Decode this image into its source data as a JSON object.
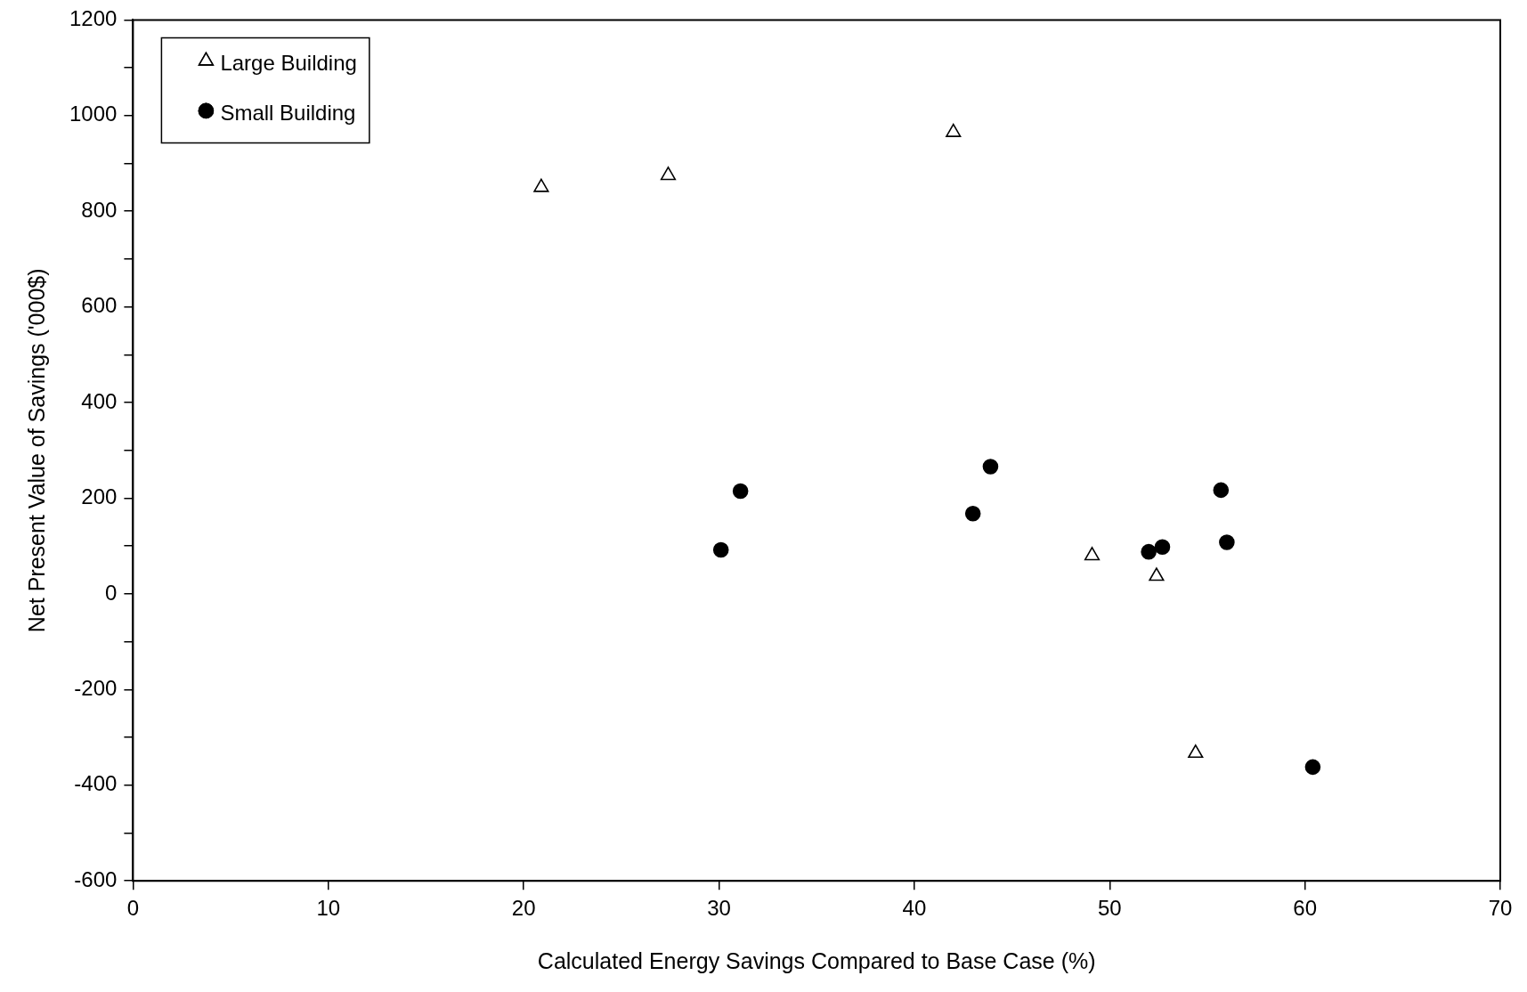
{
  "chart_data": {
    "type": "scatter",
    "xlabel": "Calculated Energy Savings Compared to Base Case (%)",
    "ylabel": "Net Present Value of Savings ('000$)",
    "xlim": [
      0,
      70
    ],
    "xticks": [
      0,
      10,
      20,
      30,
      40,
      50,
      60,
      70
    ],
    "ylim": [
      -600,
      1200
    ],
    "yticks": [
      -600,
      {
        "value": -500,
        "label": null
      },
      -400,
      {
        "value": -300,
        "label": null
      },
      -200,
      {
        "value": -100,
        "label": null
      },
      0,
      {
        "value": 100,
        "label": null
      },
      200,
      {
        "value": 300,
        "label": null
      },
      400,
      {
        "value": 500,
        "label": null
      },
      600,
      {
        "value": 700,
        "label": null
      },
      800,
      {
        "value": 900,
        "label": null
      },
      1000,
      {
        "value": 1100,
        "label": null
      },
      1200
    ],
    "grid": false,
    "legend": "top left",
    "series": [
      {
        "name": "Large Building",
        "color": "#000000",
        "marker": "triangle",
        "x": [
          20.9,
          27.4,
          42.0,
          49.1,
          52.4,
          54.4
        ],
        "values": [
          850,
          875,
          965,
          80,
          37,
          -333
        ]
      },
      {
        "name": "Small Building",
        "color": "#000000",
        "marker": "circle",
        "x": [
          30.1,
          31.1,
          43.0,
          43.9,
          52.0,
          52.7,
          55.7,
          56.0,
          60.4
        ],
        "values": [
          92,
          215,
          168,
          266,
          88,
          98,
          217,
          108,
          -362
        ]
      }
    ]
  }
}
